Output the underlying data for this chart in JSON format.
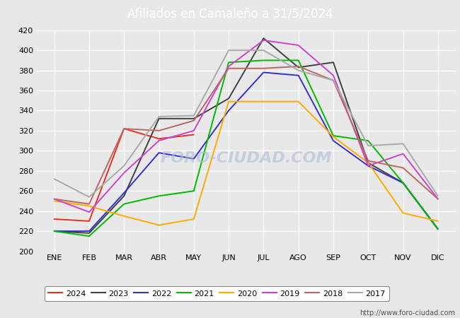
{
  "title": "Afiliados en Camaleño a 31/5/2024",
  "header_bg": "#5b9bd5",
  "months": [
    "ENE",
    "FEB",
    "MAR",
    "ABR",
    "MAY",
    "JUN",
    "JUL",
    "AGO",
    "SEP",
    "OCT",
    "NOV",
    "DIC"
  ],
  "ylim": [
    200,
    420
  ],
  "yticks": [
    200,
    220,
    240,
    260,
    280,
    300,
    320,
    340,
    360,
    380,
    400,
    420
  ],
  "series": {
    "2024": {
      "color": "#e8321e",
      "data": [
        232,
        230,
        322,
        312,
        316,
        null,
        null,
        null,
        null,
        null,
        null,
        null
      ]
    },
    "2023": {
      "color": "#404040",
      "data": [
        220,
        218,
        255,
        332,
        332,
        352,
        412,
        383,
        388,
        288,
        268,
        222
      ]
    },
    "2022": {
      "color": "#3333cc",
      "data": [
        220,
        220,
        258,
        298,
        292,
        340,
        378,
        375,
        310,
        285,
        268,
        222
      ]
    },
    "2021": {
      "color": "#00bb00",
      "data": [
        220,
        215,
        247,
        255,
        260,
        388,
        390,
        390,
        315,
        310,
        268,
        222
      ]
    },
    "2020": {
      "color": "#ffaa00",
      "data": [
        250,
        245,
        235,
        226,
        232,
        349,
        349,
        349,
        314,
        288,
        238,
        230
      ]
    },
    "2019": {
      "color": "#cc44cc",
      "data": [
        252,
        239,
        278,
        310,
        320,
        384,
        410,
        405,
        375,
        285,
        297,
        252
      ]
    },
    "2018": {
      "color": "#bb6666",
      "data": [
        252,
        247,
        322,
        320,
        330,
        382,
        382,
        384,
        370,
        290,
        283,
        252
      ]
    },
    "2017": {
      "color": "#aaaaaa",
      "data": [
        272,
        254,
        285,
        334,
        335,
        400,
        400,
        380,
        370,
        305,
        307,
        255
      ]
    }
  },
  "legend_order": [
    "2024",
    "2023",
    "2022",
    "2021",
    "2020",
    "2019",
    "2018",
    "2017"
  ],
  "url": "http://www.foro-ciudad.com",
  "bg_color": "#e8e8e8",
  "plot_bg": "#e8e8e8",
  "grid_color": "#ffffff"
}
